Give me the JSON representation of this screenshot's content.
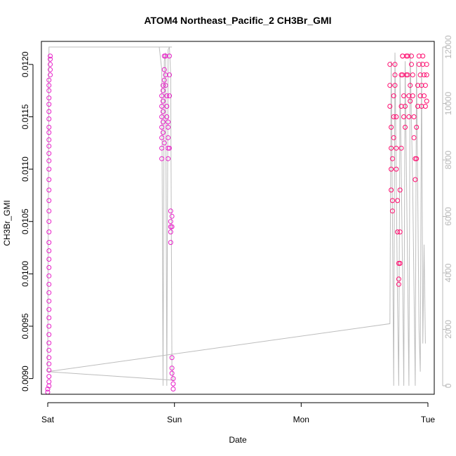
{
  "chart_data": {
    "type": "scatter",
    "title": "ATOM4 Northeast_Pacific_2 CH3Br_GMI",
    "xlabel": "Date",
    "ylabel": "CH3Br_GMI",
    "x_ticks": [
      "Sat",
      "Sun",
      "Mon",
      "Tue"
    ],
    "xlim": [
      -0.05,
      3.05
    ],
    "y_left": {
      "lim": [
        0.00885,
        0.01222
      ],
      "ticks": [
        "0.0090",
        "0.0095",
        "0.0100",
        "0.0105",
        "0.0110",
        "0.0115",
        "0.0120"
      ]
    },
    "y_right": {
      "lim": [
        -300,
        12200
      ],
      "ticks": [
        "0",
        "2000",
        "4000",
        "6000",
        "8000",
        "10000",
        "12000"
      ]
    },
    "colors": {
      "points_early": "#e81ec8",
      "points_late": "#ff0a6e",
      "altitude_line": "#bdbdbd",
      "axes": "#000000",
      "right_axis": "#b8b8b8"
    },
    "series": [
      {
        "role": "points",
        "axis": "left",
        "values": [
          [
            0.0,
            0.00887
          ],
          [
            0.0,
            0.0089
          ],
          [
            0.01,
            0.00893
          ],
          [
            0.01,
            0.00897
          ],
          [
            0.01,
            0.00902
          ],
          [
            0.01,
            0.00908
          ],
          [
            0.01,
            0.00914
          ],
          [
            0.01,
            0.0092
          ],
          [
            0.01,
            0.00927
          ],
          [
            0.01,
            0.00934
          ],
          [
            0.01,
            0.00942
          ],
          [
            0.01,
            0.0095
          ],
          [
            0.01,
            0.00958
          ],
          [
            0.01,
            0.00966
          ],
          [
            0.01,
            0.00974
          ],
          [
            0.01,
            0.00982
          ],
          [
            0.01,
            0.0099
          ],
          [
            0.01,
            0.00998
          ],
          [
            0.01,
            0.01006
          ],
          [
            0.01,
            0.01014
          ],
          [
            0.01,
            0.01022
          ],
          [
            0.01,
            0.0103
          ],
          [
            0.01,
            0.0104
          ],
          [
            0.01,
            0.0105
          ],
          [
            0.01,
            0.0106
          ],
          [
            0.01,
            0.0107
          ],
          [
            0.01,
            0.0108
          ],
          [
            0.01,
            0.0109
          ],
          [
            0.01,
            0.011
          ],
          [
            0.01,
            0.01108
          ],
          [
            0.01,
            0.01115
          ],
          [
            0.01,
            0.01122
          ],
          [
            0.01,
            0.01128
          ],
          [
            0.01,
            0.01135
          ],
          [
            0.01,
            0.0114
          ],
          [
            0.01,
            0.01148
          ],
          [
            0.01,
            0.01155
          ],
          [
            0.01,
            0.01162
          ],
          [
            0.01,
            0.01168
          ],
          [
            0.01,
            0.01175
          ],
          [
            0.01,
            0.0118
          ],
          [
            0.01,
            0.01185
          ],
          [
            0.02,
            0.0119
          ],
          [
            0.02,
            0.01195
          ],
          [
            0.02,
            0.012
          ],
          [
            0.02,
            0.01205
          ],
          [
            0.02,
            0.01208
          ],
          [
            0.9,
            0.0111
          ],
          [
            0.9,
            0.0112
          ],
          [
            0.9,
            0.0113
          ],
          [
            0.9,
            0.0114
          ],
          [
            0.9,
            0.0115
          ],
          [
            0.9,
            0.0116
          ],
          [
            0.9,
            0.0117
          ],
          [
            0.91,
            0.0118
          ],
          [
            0.91,
            0.01175
          ],
          [
            0.91,
            0.01165
          ],
          [
            0.91,
            0.01155
          ],
          [
            0.91,
            0.01145
          ],
          [
            0.91,
            0.01135
          ],
          [
            0.92,
            0.01125
          ],
          [
            0.92,
            0.01185
          ],
          [
            0.92,
            0.01195
          ],
          [
            0.92,
            0.01208
          ],
          [
            0.93,
            0.01208
          ],
          [
            0.93,
            0.0119
          ],
          [
            0.93,
            0.0118
          ],
          [
            0.94,
            0.0117
          ],
          [
            0.94,
            0.0116
          ],
          [
            0.94,
            0.0115
          ],
          [
            0.95,
            0.01145
          ],
          [
            0.95,
            0.0114
          ],
          [
            0.95,
            0.0113
          ],
          [
            0.95,
            0.0112
          ],
          [
            0.95,
            0.0111
          ],
          [
            0.96,
            0.01208
          ],
          [
            0.96,
            0.0119
          ],
          [
            0.96,
            0.0117
          ],
          [
            0.96,
            0.0112
          ],
          [
            0.97,
            0.0106
          ],
          [
            0.97,
            0.0105
          ],
          [
            0.97,
            0.0104
          ],
          [
            0.97,
            0.0103
          ],
          [
            0.97,
            0.01045
          ],
          [
            0.98,
            0.01055
          ],
          [
            0.98,
            0.01045
          ],
          [
            0.98,
            0.0092
          ],
          [
            0.98,
            0.0091
          ],
          [
            0.98,
            0.00905
          ],
          [
            0.99,
            0.009
          ],
          [
            0.99,
            0.00895
          ],
          [
            0.99,
            0.0089
          ],
          [
            2.7,
            0.012
          ],
          [
            2.7,
            0.0118
          ],
          [
            2.7,
            0.0116
          ],
          [
            2.71,
            0.0114
          ],
          [
            2.71,
            0.0112
          ],
          [
            2.71,
            0.011
          ],
          [
            2.71,
            0.0108
          ],
          [
            2.72,
            0.0106
          ],
          [
            2.72,
            0.0107
          ],
          [
            2.72,
            0.0111
          ],
          [
            2.73,
            0.0113
          ],
          [
            2.73,
            0.0115
          ],
          [
            2.73,
            0.0117
          ],
          [
            2.74,
            0.0119
          ],
          [
            2.74,
            0.012
          ],
          [
            2.74,
            0.0118
          ],
          [
            2.75,
            0.0115
          ],
          [
            2.75,
            0.0112
          ],
          [
            2.75,
            0.011
          ],
          [
            2.76,
            0.0107
          ],
          [
            2.76,
            0.0104
          ],
          [
            2.77,
            0.0101
          ],
          [
            2.77,
            0.0099
          ],
          [
            2.77,
            0.00995
          ],
          [
            2.78,
            0.0101
          ],
          [
            2.78,
            0.0104
          ],
          [
            2.78,
            0.0108
          ],
          [
            2.79,
            0.0112
          ],
          [
            2.79,
            0.0116
          ],
          [
            2.79,
            0.0119
          ],
          [
            2.8,
            0.01208
          ],
          [
            2.8,
            0.01208
          ],
          [
            2.8,
            0.0119
          ],
          [
            2.81,
            0.0117
          ],
          [
            2.81,
            0.0115
          ],
          [
            2.82,
            0.0114
          ],
          [
            2.82,
            0.0116
          ],
          [
            2.83,
            0.0119
          ],
          [
            2.83,
            0.01208
          ],
          [
            2.84,
            0.01208
          ],
          [
            2.84,
            0.0119
          ],
          [
            2.85,
            0.0117
          ],
          [
            2.85,
            0.0115
          ],
          [
            2.86,
            0.01165
          ],
          [
            2.86,
            0.0118
          ],
          [
            2.87,
            0.012
          ],
          [
            2.87,
            0.01208
          ],
          [
            2.88,
            0.0119
          ],
          [
            2.88,
            0.0117
          ],
          [
            2.89,
            0.0115
          ],
          [
            2.89,
            0.0113
          ],
          [
            2.9,
            0.0111
          ],
          [
            2.9,
            0.0109
          ],
          [
            2.91,
            0.0111
          ],
          [
            2.91,
            0.0114
          ],
          [
            2.92,
            0.0116
          ],
          [
            2.92,
            0.0118
          ],
          [
            2.93,
            0.012
          ],
          [
            2.93,
            0.01208
          ],
          [
            2.94,
            0.0119
          ],
          [
            2.94,
            0.0117
          ],
          [
            2.95,
            0.0116
          ],
          [
            2.95,
            0.0118
          ],
          [
            2.96,
            0.012
          ],
          [
            2.96,
            0.01208
          ],
          [
            2.97,
            0.0119
          ],
          [
            2.97,
            0.0117
          ],
          [
            2.98,
            0.0116
          ],
          [
            2.98,
            0.0118
          ],
          [
            2.99,
            0.012
          ],
          [
            2.99,
            0.0119
          ],
          [
            2.99,
            0.01165
          ]
        ]
      },
      {
        "role": "altitude",
        "axis": "right",
        "values": [
          [
            0.0,
            500
          ],
          [
            0.01,
            12000
          ],
          [
            0.98,
            12000
          ],
          [
            0.89,
            12000
          ],
          [
            0.88,
            12000
          ],
          [
            0.9,
            11200
          ],
          [
            0.91,
            0
          ],
          [
            0.92,
            11500
          ],
          [
            0.93,
            11800
          ],
          [
            0.94,
            0
          ],
          [
            0.95,
            11900
          ],
          [
            0.96,
            12000
          ],
          [
            0.97,
            11000
          ],
          [
            0.98,
            600
          ],
          [
            0.99,
            200
          ],
          [
            0.0,
            500
          ],
          [
            2.7,
            2200
          ],
          [
            2.71,
            11500
          ],
          [
            2.72,
            6000
          ],
          [
            2.73,
            0
          ],
          [
            2.74,
            11800
          ],
          [
            2.76,
            3000
          ],
          [
            2.77,
            0
          ],
          [
            2.78,
            11000
          ],
          [
            2.8,
            4000
          ],
          [
            2.81,
            0
          ],
          [
            2.82,
            11500
          ],
          [
            2.85,
            0
          ],
          [
            2.86,
            11800
          ],
          [
            2.88,
            7000
          ],
          [
            2.9,
            0
          ],
          [
            2.91,
            11500
          ],
          [
            2.93,
            2000
          ],
          [
            2.94,
            500
          ],
          [
            2.95,
            11500
          ],
          [
            2.96,
            1500
          ],
          [
            2.97,
            5000
          ],
          [
            2.98,
            1500
          ]
        ]
      }
    ]
  }
}
